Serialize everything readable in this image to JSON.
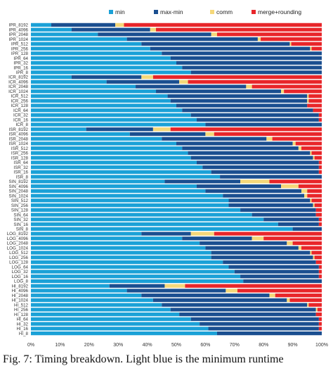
{
  "chart_data": {
    "type": "bar",
    "orientation": "horizontal",
    "stacked": true,
    "normalized": true,
    "legend_position": "top",
    "grid": false,
    "xlim": [
      0,
      100
    ],
    "x_ticks": [
      "0%",
      "10%",
      "20%",
      "30%",
      "40%",
      "50%",
      "60%",
      "70%",
      "80%",
      "90%",
      "100%"
    ],
    "categories": [
      "IPR_8192",
      "IPR_4096",
      "IPR_2048",
      "IPR_1024",
      "IPR_512",
      "IPR_256",
      "IPR_128",
      "IPR_64",
      "IPR_32",
      "IPR_16",
      "IPR_8",
      "ICR_8192",
      "ICR_4096",
      "ICR_2048",
      "ICR_1024",
      "ICR_512",
      "ICR_256",
      "ICR_128",
      "ICR_64",
      "ICR_32",
      "ICR_16",
      "ICR_8",
      "ISR_8192",
      "ISR_4096",
      "ISR_2048",
      "ISR_1024",
      "ISR_512",
      "ISR_256",
      "ISR_128",
      "ISR_64",
      "ISR_32",
      "ISR_16",
      "ISR_8",
      "SIN_8192",
      "SIN_4096",
      "SIN_2048",
      "SIN_1024",
      "SIN_512",
      "SIN_256",
      "SIN_128",
      "SIN_64",
      "SIN_32",
      "SIN_16",
      "SIN_8",
      "LOG_8192",
      "LOG_4096",
      "LOG_2048",
      "LOG_1024",
      "LOG_512",
      "LOG_256",
      "LOG_128",
      "LOG_64",
      "LOG_32",
      "LOG_16",
      "LOG_8",
      "HI_8192",
      "HI_4096",
      "HI_2048",
      "HI_1024",
      "HI_512",
      "HI_256",
      "HI_128",
      "HI_64",
      "HI_32",
      "HI_16",
      "HI_8"
    ],
    "series": [
      {
        "name": "min",
        "color": "#1ba1d7",
        "values": [
          7,
          14,
          23,
          33,
          38,
          41,
          45,
          48,
          50,
          52,
          55,
          14,
          26,
          36,
          43,
          47,
          48,
          50,
          52,
          55,
          57,
          60,
          19,
          34,
          45,
          50,
          52,
          54,
          55,
          57,
          59,
          62,
          65,
          46,
          57,
          60,
          66,
          68,
          68,
          72,
          76,
          80,
          85,
          90,
          38,
          52,
          58,
          60,
          62,
          62,
          66,
          68,
          70,
          72,
          73,
          27,
          33,
          38,
          42,
          45,
          48,
          51,
          55,
          58,
          61,
          64
        ]
      },
      {
        "name": "max-min",
        "color": "#1b4f90",
        "values": [
          22,
          27,
          39,
          45,
          51,
          55,
          55,
          52,
          50,
          48,
          45,
          24,
          25,
          38,
          43,
          48,
          47,
          45,
          45,
          44,
          42,
          40,
          23,
          26,
          36,
          40,
          40,
          42,
          42,
          42,
          40,
          37,
          35,
          26,
          29,
          33,
          28,
          28,
          29,
          26,
          22,
          19,
          14,
          10,
          17,
          24,
          30,
          32,
          34,
          35,
          32,
          31,
          29,
          27,
          27,
          19,
          34,
          44,
          46,
          50,
          50,
          47,
          44,
          41,
          38,
          36
        ]
      },
      {
        "name": "comm",
        "color": "#f5d87a",
        "values": [
          3,
          2,
          2,
          1,
          0.5,
          0.5,
          0.5,
          0,
          0,
          0,
          0,
          4,
          3,
          2,
          1,
          0.5,
          0.5,
          0,
          0,
          0,
          0,
          0,
          6,
          3,
          2,
          1,
          1,
          0.5,
          0.5,
          0,
          0,
          0,
          0,
          10,
          6,
          2,
          1,
          0.5,
          0.5,
          0,
          0,
          0,
          0,
          0,
          8,
          4,
          2,
          1,
          0.5,
          0.5,
          0,
          0,
          0,
          0,
          0,
          7,
          4,
          2,
          1,
          0.5,
          0.5,
          0,
          0,
          0,
          0,
          0
        ]
      },
      {
        "name": "merge+rounding",
        "color": "#e8262a",
        "values": [
          68,
          57,
          36,
          21,
          10.5,
          3.5,
          0.5,
          0,
          0,
          0,
          0,
          58,
          46,
          24,
          13,
          4.5,
          4.5,
          5,
          3,
          1,
          1,
          0,
          52,
          37,
          17,
          9,
          7,
          3.5,
          2.5,
          1,
          1,
          1,
          0,
          18,
          8,
          5,
          5,
          3.5,
          2.5,
          2,
          2,
          1,
          1,
          0,
          37,
          20,
          10,
          7,
          3.5,
          2.5,
          2,
          1,
          1,
          1,
          0,
          47,
          29,
          16,
          11,
          4.5,
          1.5,
          2,
          1,
          1,
          1,
          0
        ]
      }
    ]
  },
  "caption": "Fig. 7: Timing breakdown. Light blue is the minimum runtime"
}
